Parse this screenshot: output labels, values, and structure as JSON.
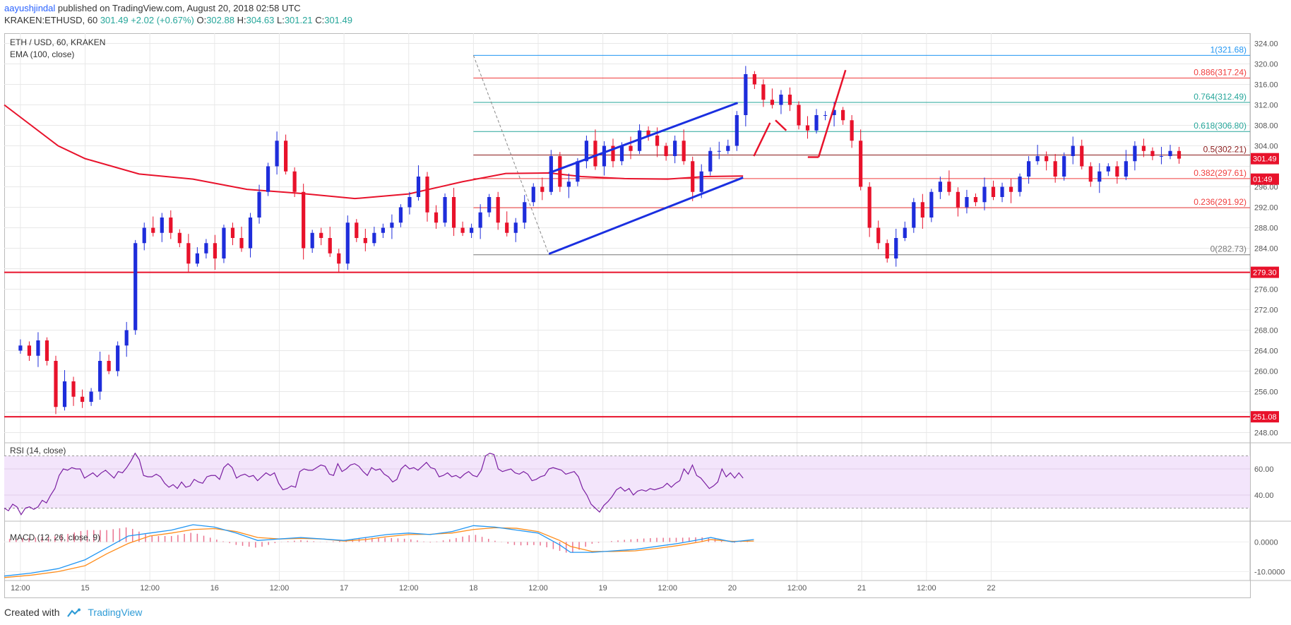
{
  "header": {
    "author": "aayushjindal",
    "published": "published on TradingView.com, August 20, 2018 02:58 UTC",
    "symbol": "KRAKEN:ETHUSD, 60",
    "last": "301.49",
    "change": "+2.02 (+0.67%)",
    "o_label": "O:",
    "o_value": "302.88",
    "h_label": "H:",
    "h_value": "304.63",
    "l_label": "L:",
    "l_value": "301.21",
    "c_label": "C:",
    "c_value": "301.49"
  },
  "legend": {
    "title": "ETH / USD, 60, KRAKEN",
    "ema": "EMA (100, close)",
    "rsi": "RSI (14, close)",
    "macd": "MACD (12, 26, close, 9)"
  },
  "footer": {
    "created": "Created with",
    "brand": "TradingView"
  },
  "colors": {
    "up": "#1e2ddb",
    "down": "#e8122b",
    "ema": "#e8122b",
    "fib_red": "#f03c3c",
    "fib_teal": "#26a69a",
    "fib_blue": "#2196f3",
    "trend": "#1a2fe0",
    "rsi": "#7b1fa2",
    "rsi_band": "#f3e5fb",
    "macd": "#2196f3",
    "signal": "#ff8c1a"
  },
  "chart_data": [
    {
      "type": "candlestick",
      "title": "ETH / USD, 60, KRAKEN",
      "ylim": [
        246,
        326
      ],
      "y_ticks": [
        248,
        252,
        256,
        260,
        264,
        268,
        272,
        276,
        280,
        284,
        288,
        292,
        296,
        300,
        304,
        308,
        312,
        316,
        320,
        324
      ],
      "y_tick_labels": [
        "248.00",
        "",
        "256.00",
        "260.00",
        "264.00",
        "268.00",
        "272.00",
        "276.00",
        "",
        "284.00",
        "288.00",
        "292.00",
        "296.00",
        "",
        "304.00",
        "308.00",
        "312.00",
        "316.00",
        "320.00",
        "324.00"
      ],
      "x_time_range_hours": [
        -15,
        216
      ],
      "x_ticks": [
        {
          "t": -12,
          "label": "12:00"
        },
        {
          "t": 0,
          "label": "15"
        },
        {
          "t": 12,
          "label": "12:00"
        },
        {
          "t": 24,
          "label": "16"
        },
        {
          "t": 36,
          "label": "12:00"
        },
        {
          "t": 48,
          "label": "17"
        },
        {
          "t": 60,
          "label": "12:00"
        },
        {
          "t": 72,
          "label": "18"
        },
        {
          "t": 84,
          "label": "12:00"
        },
        {
          "t": 96,
          "label": "19"
        },
        {
          "t": 108,
          "label": "12:00"
        },
        {
          "t": 120,
          "label": "20"
        },
        {
          "t": 132,
          "label": "12:00"
        },
        {
          "t": 144,
          "label": "21"
        },
        {
          "t": 156,
          "label": "12:00"
        },
        {
          "t": 168,
          "label": "22"
        }
      ],
      "closes": [
        265,
        263,
        266,
        262,
        253,
        258,
        255,
        254,
        256,
        262,
        260,
        265,
        268,
        285,
        288,
        287,
        290,
        287,
        285,
        281,
        283,
        285,
        282,
        288,
        286,
        284,
        290,
        295,
        300,
        305,
        299,
        295,
        284,
        287,
        286,
        283,
        281,
        289,
        286,
        285,
        287,
        288,
        289,
        292,
        294,
        298,
        291,
        289,
        294,
        288,
        287,
        288,
        291,
        294,
        289,
        287,
        289,
        293,
        296,
        295,
        302,
        296,
        297,
        301,
        305,
        300,
        304,
        301,
        304,
        303,
        307,
        306,
        304,
        302,
        305,
        301,
        295,
        299,
        303,
        303,
        304,
        310,
        318,
        316,
        313,
        312,
        314,
        312,
        308,
        307,
        310,
        310,
        311,
        309,
        305,
        296,
        288,
        285,
        282,
        286,
        288,
        293,
        290,
        295,
        297,
        295,
        292,
        294,
        293,
        296,
        294,
        296,
        295,
        298,
        301,
        302,
        301,
        298,
        302,
        304,
        300,
        297,
        299,
        300,
        298,
        301,
        304,
        303,
        302,
        302,
        303,
        301.5
      ],
      "ema100": [
        [
          -15,
          312
        ],
        [
          -5,
          304
        ],
        [
          0,
          301.5
        ],
        [
          10,
          298.5
        ],
        [
          20,
          297.5
        ],
        [
          30,
          295.5
        ],
        [
          40,
          294.7
        ],
        [
          50,
          293.7
        ],
        [
          60,
          294.6
        ],
        [
          70,
          297
        ],
        [
          78,
          298.6
        ],
        [
          86,
          298.7
        ],
        [
          92,
          298
        ],
        [
          100,
          297.6
        ],
        [
          108,
          297.5
        ],
        [
          115,
          298
        ],
        [
          122,
          298.1
        ]
      ],
      "horizontal_levels": [
        {
          "value": 279.3,
          "label": "279.30"
        },
        {
          "value": 251.08,
          "label": "251.08"
        }
      ],
      "price_labels": [
        {
          "value": 301.49,
          "label": "301.49"
        },
        {
          "value": 298.6,
          "label": "01:49"
        }
      ],
      "fibonacci": {
        "from_t": 72,
        "to_t": 86,
        "levels": [
          {
            "ratio": "1",
            "value": 321.68,
            "label": "1(321.68)"
          },
          {
            "ratio": "0.886",
            "value": 317.24,
            "label": "0.886(317.24)"
          },
          {
            "ratio": "0.764",
            "value": 312.49,
            "label": "0.764(312.49)"
          },
          {
            "ratio": "0.618",
            "value": 306.8,
            "label": "0.618(306.80)"
          },
          {
            "ratio": "0.5",
            "value": 302.21,
            "label": "0.5(302.21)"
          },
          {
            "ratio": "0.382",
            "value": 297.61,
            "label": "0.382(297.61)"
          },
          {
            "ratio": "0.236",
            "value": 291.92,
            "label": "0.236(291.92)"
          },
          {
            "ratio": "0",
            "value": 282.73,
            "label": "0(282.73)"
          }
        ]
      },
      "trendlines": [
        {
          "t1": 86,
          "v1": 282.9,
          "t2": 122,
          "v2": 297.8
        },
        {
          "t1": 86,
          "v1": 298.7,
          "t2": 121,
          "v2": 312.4
        }
      ],
      "projection": [
        [
          124,
          302
        ],
        [
          127,
          308.5
        ],
        [
          128,
          309
        ],
        [
          130,
          307
        ],
        [
          134,
          301.8
        ],
        [
          136,
          301.8
        ],
        [
          141,
          318.8
        ]
      ]
    },
    {
      "type": "line",
      "title": "RSI (14, close)",
      "ylim": [
        20,
        80
      ],
      "y_ticks": [
        40,
        60
      ],
      "y_tick_labels": [
        "40.00",
        "60.00"
      ],
      "bands": [
        30,
        70
      ],
      "values": [
        30,
        28,
        33,
        31,
        25,
        30,
        31,
        29,
        31,
        36,
        34,
        40,
        45,
        55,
        60,
        59,
        61,
        60,
        60,
        53,
        55,
        57,
        54,
        57,
        59,
        56,
        53,
        58,
        57,
        61,
        66,
        72,
        67,
        55,
        54,
        54,
        56,
        54,
        49,
        46,
        48,
        45,
        50,
        46,
        47,
        52,
        50,
        49,
        54,
        55,
        55,
        52,
        61,
        64,
        61,
        53,
        55,
        56,
        54,
        55,
        51,
        54,
        57,
        55,
        57,
        49,
        44,
        45,
        47,
        46,
        58,
        60,
        59,
        59,
        61,
        63,
        62,
        56,
        55,
        64,
        58,
        60,
        63,
        64,
        62,
        58,
        55,
        61,
        59,
        60,
        56,
        54,
        50,
        52,
        60,
        63,
        60,
        61,
        59,
        62,
        65,
        61,
        60,
        54,
        55,
        57,
        54,
        55,
        53,
        56,
        58,
        55,
        54,
        59,
        70,
        72,
        71,
        60,
        58,
        59,
        60,
        57,
        56,
        58,
        56,
        51,
        52,
        54,
        55,
        60,
        61,
        60,
        59,
        56,
        57,
        58,
        54,
        45,
        40,
        33,
        30,
        27,
        32,
        35,
        39,
        44,
        46,
        43,
        45,
        40,
        43,
        44,
        43,
        45,
        44,
        45,
        46,
        49,
        46,
        49,
        51,
        60,
        56,
        63,
        55,
        53,
        49,
        45,
        47,
        50,
        60,
        54,
        57,
        53,
        57,
        53
      ]
    },
    {
      "type": "line",
      "title": "MACD (12, 26, close, 9)",
      "ylim": [
        -13,
        7
      ],
      "y_ticks": [
        0,
        -10
      ],
      "y_tick_labels": [
        "0.0000",
        "-10.0000"
      ],
      "series": [
        {
          "points": [
            [
              -15,
              -11.5
            ],
            [
              -10,
              -10.5
            ],
            [
              -5,
              -9
            ],
            [
              0,
              -6
            ],
            [
              4,
              -2
            ],
            [
              8,
              2
            ],
            [
              12,
              3
            ],
            [
              16,
              4
            ],
            [
              20,
              5.8
            ],
            [
              24,
              5
            ],
            [
              28,
              3
            ],
            [
              32,
              0.5
            ],
            [
              36,
              1
            ],
            [
              40,
              1.5
            ],
            [
              44,
              1
            ],
            [
              48,
              0.5
            ],
            [
              52,
              1.5
            ],
            [
              56,
              2.5
            ],
            [
              60,
              3
            ],
            [
              64,
              2.5
            ],
            [
              68,
              3.5
            ],
            [
              72,
              5.5
            ],
            [
              76,
              5
            ],
            [
              80,
              4
            ],
            [
              84,
              3
            ],
            [
              88,
              -1
            ],
            [
              90,
              -3.5
            ],
            [
              94,
              -3.5
            ],
            [
              98,
              -3
            ],
            [
              102,
              -2.5
            ],
            [
              106,
              -1.5
            ],
            [
              110,
              -0.5
            ],
            [
              114,
              0.8
            ],
            [
              116,
              1.5
            ],
            [
              120,
              0
            ],
            [
              124,
              0.8
            ]
          ]
        },
        {
          "points": [
            [
              -15,
              -12
            ],
            [
              -10,
              -11.2
            ],
            [
              -5,
              -10
            ],
            [
              0,
              -8
            ],
            [
              4,
              -4
            ],
            [
              8,
              -0.5
            ],
            [
              12,
              2
            ],
            [
              16,
              3
            ],
            [
              20,
              4.2
            ],
            [
              24,
              4.5
            ],
            [
              28,
              3.5
            ],
            [
              32,
              1.5
            ],
            [
              36,
              1
            ],
            [
              40,
              1.2
            ],
            [
              44,
              1
            ],
            [
              48,
              0.3
            ],
            [
              52,
              0.8
            ],
            [
              56,
              1.8
            ],
            [
              60,
              2.5
            ],
            [
              64,
              2.6
            ],
            [
              68,
              3
            ],
            [
              72,
              4.2
            ],
            [
              76,
              4.8
            ],
            [
              80,
              4.6
            ],
            [
              84,
              3.5
            ],
            [
              88,
              0.5
            ],
            [
              90,
              -1.5
            ],
            [
              94,
              -3.2
            ],
            [
              98,
              -3.2
            ],
            [
              102,
              -3
            ],
            [
              106,
              -2.2
            ],
            [
              110,
              -1.2
            ],
            [
              114,
              0
            ],
            [
              116,
              0.8
            ],
            [
              120,
              0.2
            ],
            [
              124,
              0.3
            ]
          ]
        }
      ],
      "histogram_note": "positive and negative bars between MACD and signal"
    }
  ]
}
